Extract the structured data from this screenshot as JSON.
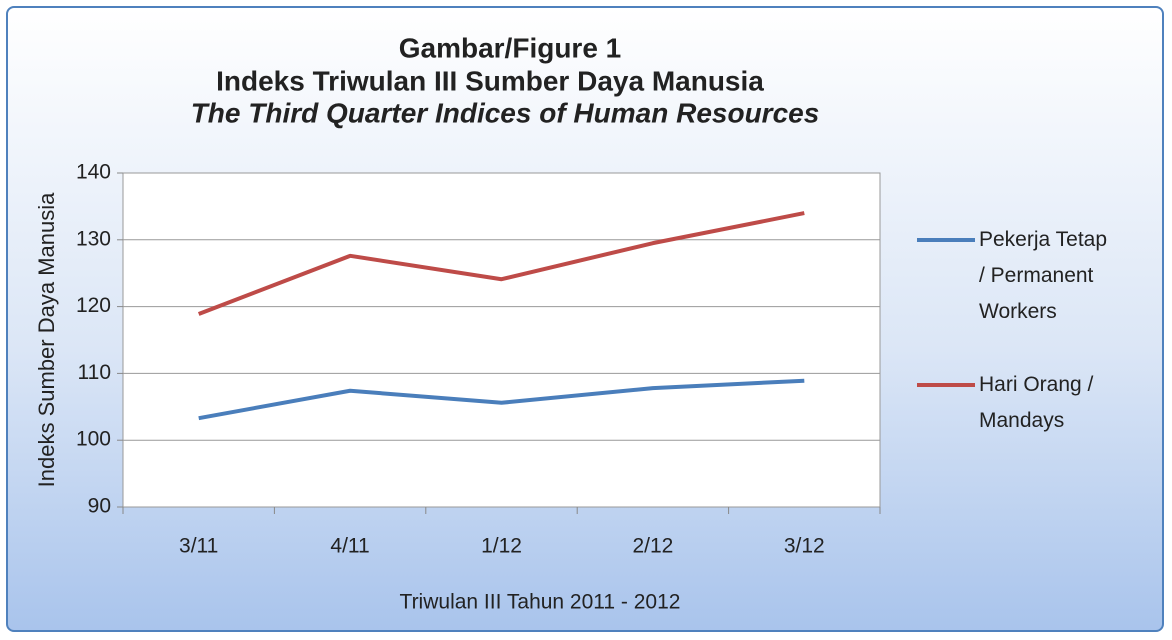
{
  "chart_data": {
    "type": "line",
    "title": [
      "Gambar/Figure 1",
      "Indeks Triwulan III Sumber Daya Manusia",
      "The Third Quarter Indices of Human Resources"
    ],
    "x_label": "Triwulan III Tahun 2011 - 2012",
    "y_label": "Indeks Sumber Daya Manusia",
    "categories": [
      "3/11",
      "4/11",
      "1/12",
      "2/12",
      "3/12"
    ],
    "series": [
      {
        "name": "Pekerja Tetap / Permanent Workers",
        "color": "#4a7ebb",
        "values": [
          103.3,
          107.4,
          105.6,
          107.8,
          108.9
        ]
      },
      {
        "name": "Hari Orang / Mandays",
        "color": "#be4b48",
        "values": [
          118.9,
          127.6,
          124.1,
          129.5,
          134.0
        ]
      }
    ],
    "ylim": [
      90,
      140
    ],
    "yticks": [
      90,
      100,
      110,
      120,
      130,
      140
    ],
    "grid": true,
    "legend": "right"
  }
}
